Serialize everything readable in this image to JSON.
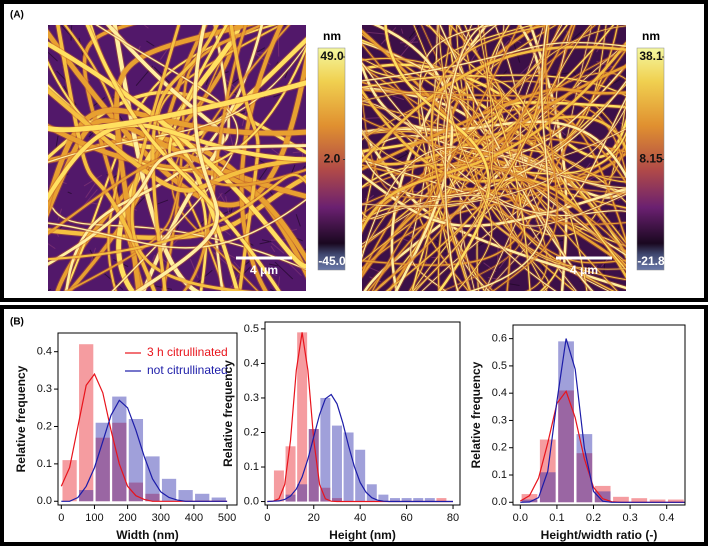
{
  "panel_a": {
    "label": "(A)",
    "images": [
      {
        "colorbar_unit": "nm",
        "colorbar_ticks": [
          {
            "value": 49.0,
            "label": "49.0"
          },
          {
            "value": 2.0,
            "label": "2.0"
          },
          {
            "value": -45.0,
            "label": "-45.0"
          }
        ],
        "scale_bar": "4 μm"
      },
      {
        "colorbar_unit": "nm",
        "colorbar_ticks": [
          {
            "value": 38.1,
            "label": "38.1"
          },
          {
            "value": 8.15,
            "label": "8.15"
          },
          {
            "value": -21.8,
            "label": "-21.8"
          }
        ],
        "scale_bar": "4 μm"
      }
    ]
  },
  "panel_b": {
    "label": "(B)"
  },
  "chart_data": [
    {
      "type": "histogram",
      "xlabel": "Width (nm)",
      "ylabel": "Relative frequency",
      "bins": [
        0,
        50,
        100,
        150,
        200,
        250,
        300,
        350,
        400,
        450,
        500
      ],
      "fit_x": [
        0,
        25,
        50,
        75,
        100,
        125,
        150,
        175,
        200,
        225,
        250,
        275,
        300,
        325,
        350,
        375,
        400,
        425,
        450,
        475,
        500
      ],
      "series": [
        {
          "name": "3 h citrullinated",
          "color": "#e8141c",
          "values": [
            0.11,
            0.42,
            0.17,
            0.21,
            0.05,
            0.02,
            0,
            0,
            0,
            0
          ],
          "fit": [
            0.04,
            0.09,
            0.2,
            0.31,
            0.34,
            0.29,
            0.19,
            0.1,
            0.04,
            0.015,
            0.005,
            0,
            0,
            0,
            0,
            0,
            0,
            0,
            0,
            0,
            0
          ]
        },
        {
          "name": "not citrullinated",
          "color": "#1c1ca8",
          "values": [
            0,
            0.03,
            0.21,
            0.28,
            0.22,
            0.12,
            0.06,
            0.03,
            0.02,
            0.01
          ],
          "fit": [
            0,
            0,
            0.01,
            0.04,
            0.09,
            0.16,
            0.23,
            0.27,
            0.25,
            0.19,
            0.12,
            0.06,
            0.025,
            0.01,
            0.003,
            0,
            0,
            0,
            0,
            0,
            0
          ]
        }
      ],
      "xlim": [
        -10,
        530
      ],
      "ylim": [
        -0.01,
        0.45
      ],
      "xticks": [
        0,
        100,
        200,
        300,
        400,
        500
      ],
      "yticks": [
        {
          "value": 0,
          "label": "0.0"
        },
        0.1,
        0.2,
        0.3,
        0.4
      ],
      "legend": "upper right"
    },
    {
      "type": "histogram",
      "xlabel": "Height (nm)",
      "ylabel": "Relative frequency",
      "bins": [
        2.5,
        7.5,
        12.5,
        17.5,
        22.5,
        27.5,
        32.5,
        37.5,
        42.5,
        47.5,
        52.5,
        57.5,
        62.5,
        67.5,
        72.5,
        77.5
      ],
      "fit_x": [
        0,
        2.5,
        5,
        7.5,
        10,
        12.5,
        15,
        17.5,
        20,
        22.5,
        25,
        27.5,
        30,
        32.5,
        35,
        37.5,
        40,
        42.5,
        45,
        47.5,
        50,
        52.5,
        55,
        57.5,
        60,
        62.5,
        65,
        67.5,
        70,
        72.5,
        75,
        77.5,
        80
      ],
      "series": [
        {
          "color": "#e8141c",
          "values": [
            0.09,
            0.16,
            0.49,
            0.21,
            0.04,
            0.01,
            0,
            0,
            0,
            0,
            0,
            0,
            0,
            0,
            0.01
          ],
          "fit": [
            0,
            0.001,
            0.008,
            0.049,
            0.177,
            0.38,
            0.49,
            0.38,
            0.177,
            0.049,
            0.008,
            0.001,
            0,
            0,
            0,
            0,
            0,
            0,
            0,
            0,
            0,
            0,
            0,
            0,
            0,
            0,
            0,
            0,
            0,
            0,
            0,
            0,
            0
          ]
        },
        {
          "color": "#1c1ca8",
          "values": [
            0,
            0.02,
            0.05,
            0.21,
            0.3,
            0.22,
            0.2,
            0.15,
            0.05,
            0.02,
            0.01,
            0.01,
            0.01,
            0.01,
            0
          ],
          "fit": [
            0,
            0.001,
            0.002,
            0.006,
            0.016,
            0.036,
            0.071,
            0.123,
            0.188,
            0.252,
            0.298,
            0.31,
            0.283,
            0.228,
            0.161,
            0.101,
            0.055,
            0.027,
            0.011,
            0.004,
            0.001,
            0,
            0,
            0,
            0,
            0,
            0,
            0,
            0,
            0,
            0,
            0,
            0
          ]
        }
      ],
      "xlim": [
        -1,
        83
      ],
      "ylim": [
        -0.01,
        0.52
      ],
      "xticks": [
        0,
        20,
        40,
        60,
        80
      ],
      "yticks": [
        {
          "value": 0,
          "label": "0.0"
        },
        0.1,
        0.2,
        0.3,
        0.4,
        0.5
      ]
    },
    {
      "type": "histogram",
      "xlabel": "Height/width ratio (-)",
      "ylabel": "Relative frequency",
      "bins": [
        0,
        0.05,
        0.1,
        0.15,
        0.2,
        0.25,
        0.3,
        0.35,
        0.4,
        0.45
      ],
      "fit_x": [
        0,
        0.025,
        0.05,
        0.075,
        0.1,
        0.125,
        0.15,
        0.175,
        0.2,
        0.225,
        0.25,
        0.275,
        0.3,
        0.325,
        0.35,
        0.375,
        0.4,
        0.425,
        0.45
      ],
      "series": [
        {
          "color": "#e8141c",
          "values": [
            0.03,
            0.23,
            0.41,
            0.18,
            0.06,
            0.02,
            0.015,
            0.01,
            0.01
          ],
          "fit": [
            0.0045,
            0.024,
            0.089,
            0.218,
            0.362,
            0.407,
            0.31,
            0.159,
            0.055,
            0.013,
            0.002,
            0,
            0,
            0,
            0,
            0,
            0,
            0,
            0
          ]
        },
        {
          "color": "#1c1ca8",
          "values": [
            0.01,
            0.11,
            0.59,
            0.25,
            0.04,
            0,
            0,
            0,
            0
          ],
          "fit": [
            0,
            0.001,
            0.017,
            0.114,
            0.37,
            0.6,
            0.488,
            0.198,
            0.04,
            0.004,
            0,
            0,
            0,
            0,
            0,
            0,
            0,
            0,
            0
          ]
        }
      ],
      "xlim": [
        -0.02,
        0.45
      ],
      "ylim": [
        -0.01,
        0.65
      ],
      "xticks": [
        {
          "value": 0,
          "label": "0.0"
        },
        0.1,
        0.2,
        0.3,
        0.4
      ],
      "yticks": [
        {
          "value": 0,
          "label": "0.0"
        },
        0.1,
        0.2,
        0.3,
        0.4,
        0.5,
        0.6
      ]
    }
  ]
}
